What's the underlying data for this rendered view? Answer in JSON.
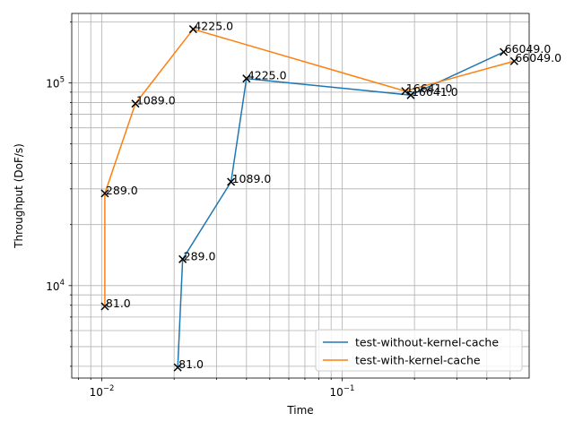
{
  "chart_data": {
    "type": "line",
    "xscale": "log",
    "yscale": "log",
    "xlabel": "Time",
    "ylabel": "Throughput (DoF/s)",
    "xlim": [
      0.0075,
      0.6
    ],
    "ylim": [
      3500,
      220000
    ],
    "grid": true,
    "grid_which": "both",
    "legend_position": "lower right",
    "x_ticks": [
      {
        "value": 0.01,
        "base": "10",
        "exp": "−2"
      },
      {
        "value": 0.1,
        "base": "10",
        "exp": "−1"
      }
    ],
    "y_ticks": [
      {
        "value": 10000,
        "base": "10",
        "exp": "4"
      },
      {
        "value": 100000,
        "base": "10",
        "exp": "5"
      }
    ],
    "series": [
      {
        "name": "test-without-kernel-cache",
        "color": "#1f77b4",
        "marker": "x",
        "points": [
          {
            "x": 0.0207,
            "y": 3950,
            "label": "81.0"
          },
          {
            "x": 0.0217,
            "y": 13500,
            "label": "289.0"
          },
          {
            "x": 0.0345,
            "y": 32500,
            "label": "1089.0"
          },
          {
            "x": 0.04,
            "y": 105000,
            "label": "4225.0"
          },
          {
            "x": 0.193,
            "y": 87000,
            "label": "16641.0"
          },
          {
            "x": 0.47,
            "y": 142000,
            "label": "66049.0"
          }
        ]
      },
      {
        "name": "test-with-kernel-cache",
        "color": "#ff7f0e",
        "marker": "x",
        "points": [
          {
            "x": 0.0103,
            "y": 7900,
            "label": "81.0"
          },
          {
            "x": 0.0103,
            "y": 28500,
            "label": "289.0"
          },
          {
            "x": 0.0138,
            "y": 79000,
            "label": "1089.0"
          },
          {
            "x": 0.024,
            "y": 184000,
            "label": "4225.0"
          },
          {
            "x": 0.183,
            "y": 91000,
            "label": "16641.0"
          },
          {
            "x": 0.52,
            "y": 128000,
            "label": "66049.0"
          }
        ]
      }
    ]
  }
}
